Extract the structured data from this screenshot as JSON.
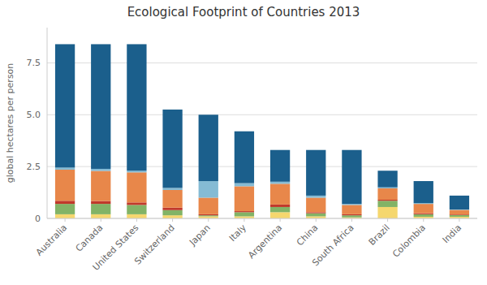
{
  "chart_data": {
    "type": "bar",
    "stacked": true,
    "title": "Ecological Footprint of Countries 2013",
    "ylabel": "global hectares per person",
    "categories": [
      "Australia",
      "Canada",
      "United States",
      "Switzerland",
      "Japan",
      "Italy",
      "Argentina",
      "China",
      "South Africa",
      "Brazil",
      "Colombia",
      "India"
    ],
    "series": [
      {
        "color": "#f5d76e",
        "values": [
          0.2,
          0.2,
          0.2,
          0.15,
          0.1,
          0.1,
          0.3,
          0.1,
          0.05,
          0.55,
          0.08,
          0.08
        ]
      },
      {
        "color": "#82b366",
        "values": [
          0.5,
          0.5,
          0.45,
          0.25,
          0.05,
          0.2,
          0.25,
          0.15,
          0.1,
          0.3,
          0.12,
          0.08
        ]
      },
      {
        "color": "#c0392b",
        "values": [
          0.15,
          0.14,
          0.12,
          0.12,
          0.05,
          0.05,
          0.12,
          0.05,
          0.05,
          0.05,
          0.05,
          0.03
        ]
      },
      {
        "color": "#e8874a",
        "values": [
          1.5,
          1.45,
          1.45,
          0.85,
          0.8,
          1.2,
          1.0,
          0.7,
          0.45,
          0.55,
          0.45,
          0.22
        ]
      },
      {
        "color": "#85bbd4",
        "values": [
          0.1,
          0.1,
          0.08,
          0.1,
          0.8,
          0.15,
          0.1,
          0.1,
          0.05,
          0.05,
          0.04,
          0.02
        ]
      },
      {
        "color": "#1b5f8c",
        "values": [
          5.95,
          6.01,
          6.1,
          3.78,
          3.2,
          2.5,
          1.53,
          2.2,
          2.6,
          0.8,
          1.06,
          0.67
        ]
      }
    ],
    "ylim": [
      0,
      9.2
    ],
    "yticks": [
      0,
      2.5,
      {
        "value": 5.0,
        "label": "5.0"
      },
      7.5
    ],
    "grid": true
  }
}
